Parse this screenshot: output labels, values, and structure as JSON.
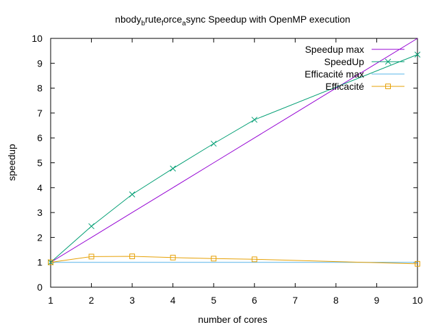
{
  "chart_data": {
    "type": "line",
    "title": {
      "parts": [
        {
          "text": "nbody",
          "sub": false
        },
        {
          "text": "b",
          "sub": true
        },
        {
          "text": "rute",
          "sub": false
        },
        {
          "text": "f",
          "sub": true
        },
        {
          "text": "orce",
          "sub": false
        },
        {
          "text": "a",
          "sub": true
        },
        {
          "text": "sync Speedup with OpenMP execution",
          "sub": false
        }
      ]
    },
    "xlabel": "number of cores",
    "ylabel": "speedup",
    "xlim": [
      1,
      10
    ],
    "ylim": [
      0,
      10
    ],
    "xticks": [
      1,
      2,
      3,
      4,
      5,
      6,
      7,
      8,
      9,
      10
    ],
    "yticks": [
      0,
      1,
      2,
      3,
      4,
      5,
      6,
      7,
      8,
      9,
      10
    ],
    "grid": false,
    "legend_position": "top-right",
    "series": [
      {
        "name": "Speedup max",
        "color": "#9400d3",
        "marker": "none",
        "x": [
          1,
          2,
          3,
          4,
          5,
          6,
          7,
          8,
          9,
          10
        ],
        "y": [
          1,
          2,
          3,
          4,
          5,
          6,
          7,
          8,
          9,
          10
        ]
      },
      {
        "name": "SpeedUp",
        "color": "#009e73",
        "marker": "x",
        "x": [
          1,
          2,
          3,
          4,
          5,
          6,
          10
        ],
        "y": [
          1.0,
          2.45,
          3.73,
          4.77,
          5.77,
          6.73,
          9.35
        ]
      },
      {
        "name": "Efficacité max",
        "color": "#56b4e9",
        "marker": "none",
        "x": [
          1,
          2,
          3,
          4,
          5,
          6,
          7,
          8,
          9,
          10
        ],
        "y": [
          1,
          1,
          1,
          1,
          1,
          1,
          1,
          1,
          1,
          1
        ]
      },
      {
        "name": "Efficacité",
        "color": "#e69f00",
        "marker": "square",
        "x": [
          1,
          2,
          3,
          4,
          5,
          6,
          10
        ],
        "y": [
          1.0,
          1.23,
          1.24,
          1.19,
          1.15,
          1.12,
          0.94
        ]
      }
    ]
  }
}
